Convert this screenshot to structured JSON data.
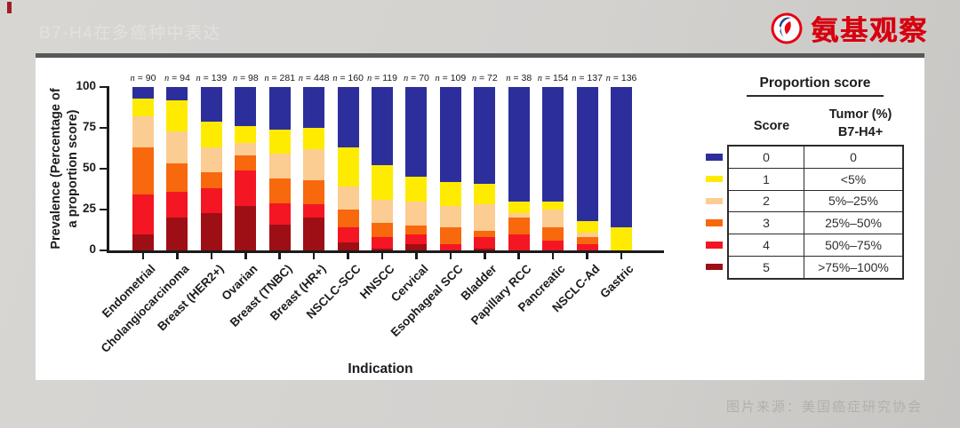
{
  "slide": {
    "title": "B7-H4在多癌种中表达",
    "logo_text": "氨基观察",
    "source_text": "图片来源：美国癌症研究协会",
    "accent_color": "#d7000f"
  },
  "legend": {
    "title": "Proportion score",
    "col_score": "Score",
    "col_tumor_line1": "Tumor (%)",
    "col_tumor_line2": "B7-H4+",
    "rows": [
      {
        "score": "0",
        "range": "0",
        "color": "#2c2e9c"
      },
      {
        "score": "1",
        "range": "<5%",
        "color": "#ffeb00"
      },
      {
        "score": "2",
        "range": "5%–25%",
        "color": "#fbcd92"
      },
      {
        "score": "3",
        "range": "25%–50%",
        "color": "#f8680c"
      },
      {
        "score": "4",
        "range": "50%–75%",
        "color": "#f41623"
      },
      {
        "score": "5",
        "range": ">75%–100%",
        "color": "#9d0f15"
      }
    ]
  },
  "chart_data": {
    "type": "bar",
    "stacked": true,
    "title": "",
    "xlabel": "Indication",
    "ylabel": "Prevalence (Percentage of a proportion score)",
    "ylabel_line1": "Prevalence (Percentage of",
    "ylabel_line2": "a proportion score)",
    "ylim": [
      0,
      100
    ],
    "yticks": [
      0,
      25,
      50,
      75,
      100
    ],
    "grid": false,
    "legend_position": "right-table",
    "categories": [
      "Endometrial",
      "Cholangiocarcinoma",
      "Breast (HER2+)",
      "Ovarian",
      "Breast (TNBC)",
      "Breast (HR+)",
      "NSCLC-SCC",
      "HNSCC",
      "Cervical",
      "Esophageal SCC",
      "Bladder",
      "Papillary RCC",
      "Pancreatic",
      "NSCLC-Ad",
      "Gastric"
    ],
    "n_labels": [
      "n = 90",
      "n = 94",
      "n = 139",
      "n = 98",
      "n = 281",
      "n = 448",
      "n = 160",
      "n = 119",
      "n = 70",
      "n = 109",
      "n = 72",
      "n = 38",
      "n = 154",
      "n = 137",
      "n = 136"
    ],
    "series": [
      {
        "name": "Score 0 (0)",
        "color": "#2c2e9c",
        "values": [
          7,
          8,
          21,
          24,
          26,
          25,
          37,
          48,
          55,
          58,
          59,
          70,
          70,
          82,
          86
        ]
      },
      {
        "name": "Score 1 (<5%)",
        "color": "#ffeb00",
        "values": [
          11,
          19,
          16,
          10,
          15,
          13,
          24,
          21,
          15,
          15,
          13,
          7,
          5,
          7,
          14
        ]
      },
      {
        "name": "Score 2 (5%–25%)",
        "color": "#fbcd92",
        "values": [
          19,
          20,
          15,
          8,
          15,
          19,
          14,
          14,
          15,
          13,
          16,
          3,
          11,
          3,
          0
        ]
      },
      {
        "name": "Score 3 (25%–50%)",
        "color": "#f8680c",
        "values": [
          29,
          17,
          10,
          9,
          15,
          15,
          11,
          9,
          5,
          10,
          4,
          10,
          8,
          4,
          0
        ]
      },
      {
        "name": "Score 4 (50%–75%)",
        "color": "#f41623",
        "values": [
          24,
          16,
          15,
          22,
          13,
          8,
          9,
          7,
          6,
          4,
          7,
          10,
          6,
          4,
          0
        ]
      },
      {
        "name": "Score 5 (>75%–100%)",
        "color": "#9d0f15",
        "values": [
          10,
          20,
          23,
          27,
          16,
          20,
          5,
          1,
          4,
          0,
          1,
          0,
          0,
          0,
          0
        ]
      }
    ]
  }
}
